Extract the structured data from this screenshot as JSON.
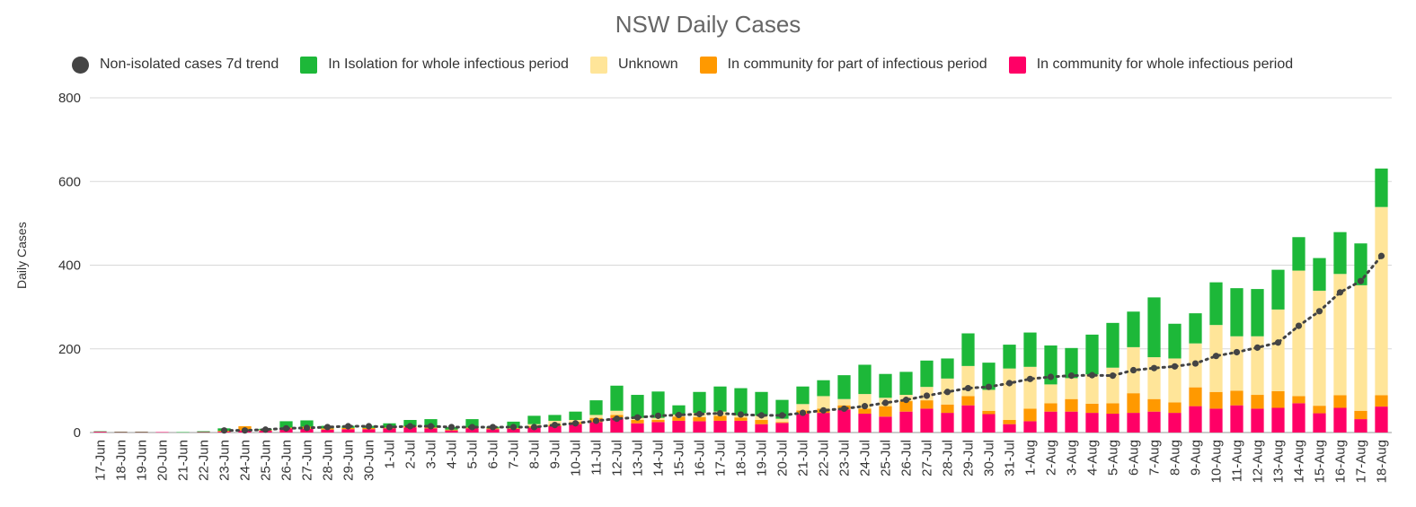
{
  "chart_data": {
    "type": "bar",
    "title": "NSW Daily Cases",
    "xlabel": "",
    "ylabel": "Daily Cases",
    "ylim": [
      0,
      800
    ],
    "yticks": [
      0,
      200,
      400,
      600,
      800
    ],
    "grid": true,
    "legend_position": "top",
    "stacked": true,
    "categories": [
      "17-Jun",
      "18-Jun",
      "19-Jun",
      "20-Jun",
      "21-Jun",
      "22-Jun",
      "23-Jun",
      "24-Jun",
      "25-Jun",
      "26-Jun",
      "27-Jun",
      "28-Jun",
      "29-Jun",
      "30-Jun",
      "1-Jul",
      "2-Jul",
      "3-Jul",
      "4-Jul",
      "5-Jul",
      "6-Jul",
      "7-Jul",
      "8-Jul",
      "9-Jul",
      "10-Jul",
      "11-Jul",
      "12-Jul",
      "13-Jul",
      "14-Jul",
      "15-Jul",
      "16-Jul",
      "17-Jul",
      "18-Jul",
      "19-Jul",
      "20-Jul",
      "21-Jul",
      "22-Jul",
      "23-Jul",
      "24-Jul",
      "25-Jul",
      "26-Jul",
      "27-Jul",
      "28-Jul",
      "29-Jul",
      "30-Jul",
      "31-Jul",
      "1-Aug",
      "2-Aug",
      "3-Aug",
      "4-Aug",
      "5-Aug",
      "6-Aug",
      "7-Aug",
      "8-Aug",
      "9-Aug",
      "10-Aug",
      "11-Aug",
      "12-Aug",
      "13-Aug",
      "14-Aug",
      "15-Aug",
      "16-Aug",
      "17-Aug",
      "18-Aug"
    ],
    "series": [
      {
        "name": "In community for whole infectious period",
        "color": "#ff0066",
        "values": [
          2,
          1,
          1,
          1,
          0,
          1,
          2,
          5,
          4,
          10,
          9,
          7,
          8,
          8,
          10,
          12,
          10,
          5,
          10,
          8,
          9,
          12,
          15,
          20,
          25,
          35,
          22,
          25,
          28,
          27,
          28,
          28,
          20,
          23,
          45,
          47,
          55,
          45,
          38,
          50,
          57,
          47,
          65,
          44,
          20,
          27,
          50,
          50,
          47,
          45,
          47,
          50,
          47,
          63,
          57,
          65,
          57,
          59,
          70,
          46,
          59,
          32,
          62
        ]
      },
      {
        "name": "In community for part of infectious period",
        "color": "#ff9900",
        "values": [
          0,
          0,
          0,
          0,
          0,
          0,
          2,
          10,
          2,
          2,
          5,
          3,
          3,
          3,
          2,
          3,
          2,
          2,
          2,
          2,
          2,
          3,
          3,
          5,
          10,
          7,
          8,
          5,
          10,
          10,
          12,
          8,
          10,
          2,
          8,
          10,
          10,
          12,
          25,
          25,
          20,
          20,
          22,
          8,
          10,
          30,
          20,
          30,
          22,
          25,
          47,
          30,
          25,
          45,
          40,
          35,
          33,
          40,
          17,
          18,
          30,
          20,
          27
        ]
      },
      {
        "name": "Unknown",
        "color": "#ffe599",
        "values": [
          0,
          0,
          0,
          0,
          0,
          0,
          0,
          0,
          0,
          0,
          0,
          0,
          0,
          0,
          0,
          0,
          0,
          0,
          0,
          0,
          0,
          5,
          10,
          5,
          7,
          10,
          5,
          5,
          5,
          10,
          10,
          5,
          10,
          8,
          15,
          30,
          15,
          35,
          20,
          15,
          32,
          62,
          72,
          50,
          123,
          100,
          45,
          50,
          70,
          85,
          110,
          100,
          105,
          105,
          160,
          130,
          140,
          195,
          300,
          275,
          290,
          300,
          450
        ]
      },
      {
        "name": "In Isolation for whole infectious period",
        "color": "#1db839",
        "values": [
          1,
          1,
          1,
          0,
          1,
          2,
          6,
          0,
          3,
          15,
          15,
          6,
          5,
          5,
          10,
          15,
          20,
          6,
          20,
          4,
          15,
          20,
          14,
          20,
          35,
          60,
          55,
          63,
          22,
          50,
          60,
          65,
          57,
          45,
          42,
          38,
          57,
          70,
          57,
          55,
          63,
          48,
          78,
          65,
          57,
          82,
          93,
          72,
          95,
          107,
          85,
          143,
          83,
          72,
          102,
          115,
          113,
          95,
          80,
          78,
          100,
          100,
          92
        ]
      },
      {
        "name": "Non-isolated cases 7d trend",
        "color": "#444444",
        "type": "line",
        "values": [
          null,
          null,
          null,
          null,
          null,
          null,
          5,
          5,
          7,
          10,
          11,
          13,
          15,
          15,
          13,
          15,
          15,
          13,
          13,
          13,
          13,
          13,
          18,
          22,
          28,
          33,
          36,
          40,
          42,
          44,
          46,
          43,
          41,
          41,
          47,
          53,
          57,
          63,
          71,
          78,
          88,
          97,
          106,
          109,
          118,
          128,
          133,
          136,
          137,
          136,
          149,
          154,
          158,
          165,
          183,
          192,
          203,
          215,
          255,
          290,
          335,
          362,
          422
        ]
      }
    ]
  }
}
